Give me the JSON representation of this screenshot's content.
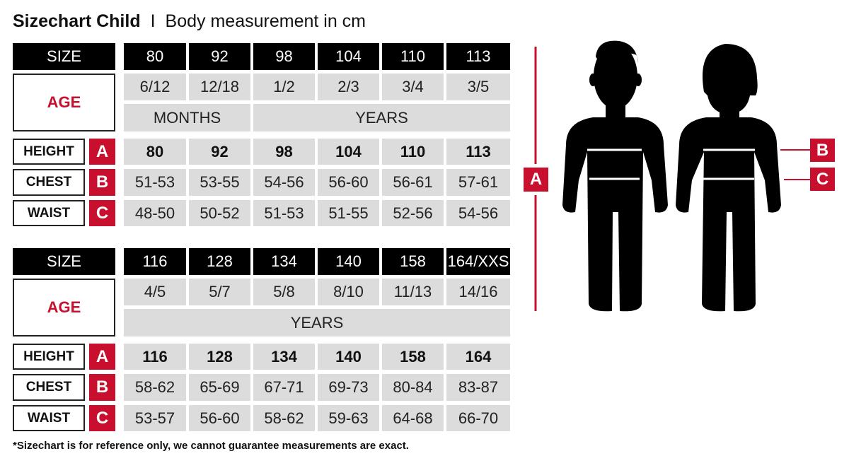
{
  "title": {
    "main": "Sizechart Child",
    "separator": "I",
    "sub": "Body measurement in cm"
  },
  "labels": {
    "size": "SIZE",
    "age": "AGE",
    "height": "HEIGHT",
    "chest": "CHEST",
    "waist": "WAIST",
    "A": "A",
    "B": "B",
    "C": "C"
  },
  "tables": [
    {
      "sizes": [
        "80",
        "92",
        "98",
        "104",
        "110",
        "113"
      ],
      "ages": [
        "6/12",
        "12/18",
        "1/2",
        "2/3",
        "3/4",
        "3/5"
      ],
      "age_units": [
        {
          "label": "MONTHS",
          "span": 2
        },
        {
          "label": "YEARS",
          "span": 4
        }
      ],
      "height": [
        "80",
        "92",
        "98",
        "104",
        "110",
        "113"
      ],
      "chest": [
        "51-53",
        "53-55",
        "54-56",
        "56-60",
        "56-61",
        "57-61"
      ],
      "waist": [
        "48-50",
        "50-52",
        "51-53",
        "51-55",
        "52-56",
        "54-56"
      ]
    },
    {
      "sizes": [
        "116",
        "128",
        "134",
        "140",
        "158",
        "164/XXS"
      ],
      "ages": [
        "4/5",
        "5/7",
        "5/8",
        "8/10",
        "11/13",
        "14/16"
      ],
      "age_units": [
        {
          "label": "YEARS",
          "span": 6
        }
      ],
      "height": [
        "116",
        "128",
        "134",
        "140",
        "158",
        "164"
      ],
      "chest": [
        "58-62",
        "65-69",
        "67-71",
        "69-73",
        "80-84",
        "83-87"
      ],
      "waist": [
        "53-57",
        "56-60",
        "58-62",
        "59-63",
        "64-68",
        "66-70"
      ]
    }
  ],
  "footnote": "*Sizechart is for reference only, we cannot guarantee measurements are exact.",
  "colors": {
    "accent": "#c8102e",
    "header": "#000000",
    "cell": "#dcdcdc"
  },
  "illustration": {
    "figures": [
      "boy-silhouette",
      "girl-silhouette"
    ]
  }
}
